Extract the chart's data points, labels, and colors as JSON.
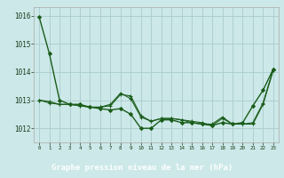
{
  "title": "Graphe pression niveau de la mer (hPa)",
  "background_color": "#cce8e8",
  "plot_bg_color": "#cce8e8",
  "grid_color": "#aacccc",
  "line_color": "#1a5c1a",
  "label_bg_color": "#2d6e2d",
  "label_text_color": "#ffffff",
  "tick_color": "#1a3a1a",
  "xlim": [
    -0.5,
    23.5
  ],
  "ylim": [
    1011.5,
    1016.3
  ],
  "yticks": [
    1012,
    1013,
    1014,
    1015,
    1016
  ],
  "xtick_labels": [
    "0",
    "1",
    "2",
    "3",
    "4",
    "5",
    "6",
    "7",
    "8",
    "9",
    "10",
    "11",
    "12",
    "13",
    "14",
    "15",
    "16",
    "17",
    "18",
    "19",
    "20",
    "21",
    "22",
    "23"
  ],
  "series": [
    {
      "y": [
        1015.95,
        1014.65,
        1013.0,
        1012.85,
        1012.85,
        1012.75,
        1012.7,
        1012.65,
        1012.7,
        1012.5,
        1012.0,
        1012.0,
        1012.3,
        1012.3,
        1012.2,
        1012.2,
        1012.15,
        1012.1,
        1012.2,
        1012.15,
        1012.2,
        1012.8,
        1013.35,
        1014.1
      ],
      "marker": "D",
      "ms": 2.0,
      "lw": 1.0
    },
    {
      "y": [
        1013.0,
        1012.95,
        1012.85,
        1012.85,
        1012.8,
        1012.75,
        1012.75,
        1012.8,
        1013.2,
        1013.15,
        1012.45,
        1012.25,
        1012.35,
        1012.35,
        1012.3,
        1012.2,
        1012.15,
        1012.15,
        1012.4,
        1012.15,
        1012.15,
        1012.15,
        1012.85,
        1014.05
      ],
      "marker": "+",
      "ms": 3.5,
      "lw": 0.8
    },
    {
      "y": [
        1013.0,
        1012.9,
        1012.85,
        1012.85,
        1012.8,
        1012.75,
        1012.75,
        1012.85,
        1013.25,
        1013.05,
        1012.4,
        1012.25,
        1012.35,
        1012.35,
        1012.3,
        1012.25,
        1012.2,
        1012.1,
        1012.35,
        1012.15,
        1012.15,
        1012.2,
        1012.9,
        1014.1
      ],
      "marker": "+",
      "ms": 3.0,
      "lw": 0.8
    }
  ]
}
